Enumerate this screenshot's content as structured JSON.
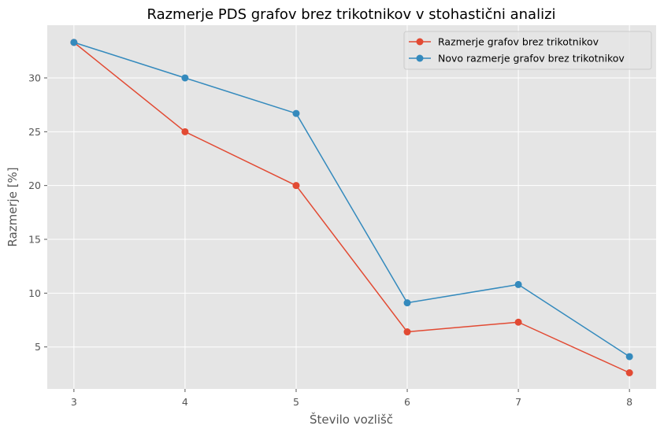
{
  "chart_data": {
    "type": "line",
    "title": "Razmerje PDS grafov brez trikotnikov v stohastični analizi",
    "xlabel": "Število vozlišč",
    "ylabel": "Razmerje [%]",
    "x": [
      3,
      4,
      5,
      6,
      7,
      8
    ],
    "xlim": [
      2.76,
      8.24
    ],
    "ylim": [
      1.1,
      34.9
    ],
    "xticks": [
      "3",
      "4",
      "5",
      "6",
      "7",
      "8"
    ],
    "yticks": [
      "5",
      "10",
      "15",
      "20",
      "25",
      "30"
    ],
    "ytick_values": [
      5,
      10,
      15,
      20,
      25,
      30
    ],
    "grid": true,
    "legend_position": "top-right",
    "series": [
      {
        "name": "Razmerje grafov brez trikotnikov",
        "color": "#E24A33",
        "values": [
          33.3,
          25.0,
          20.0,
          6.4,
          7.3,
          2.6
        ]
      },
      {
        "name": "Novo razmerje grafov brez trikotnikov",
        "color": "#348ABD",
        "values": [
          33.3,
          30.0,
          26.7,
          9.1,
          10.8,
          4.1
        ]
      }
    ]
  }
}
